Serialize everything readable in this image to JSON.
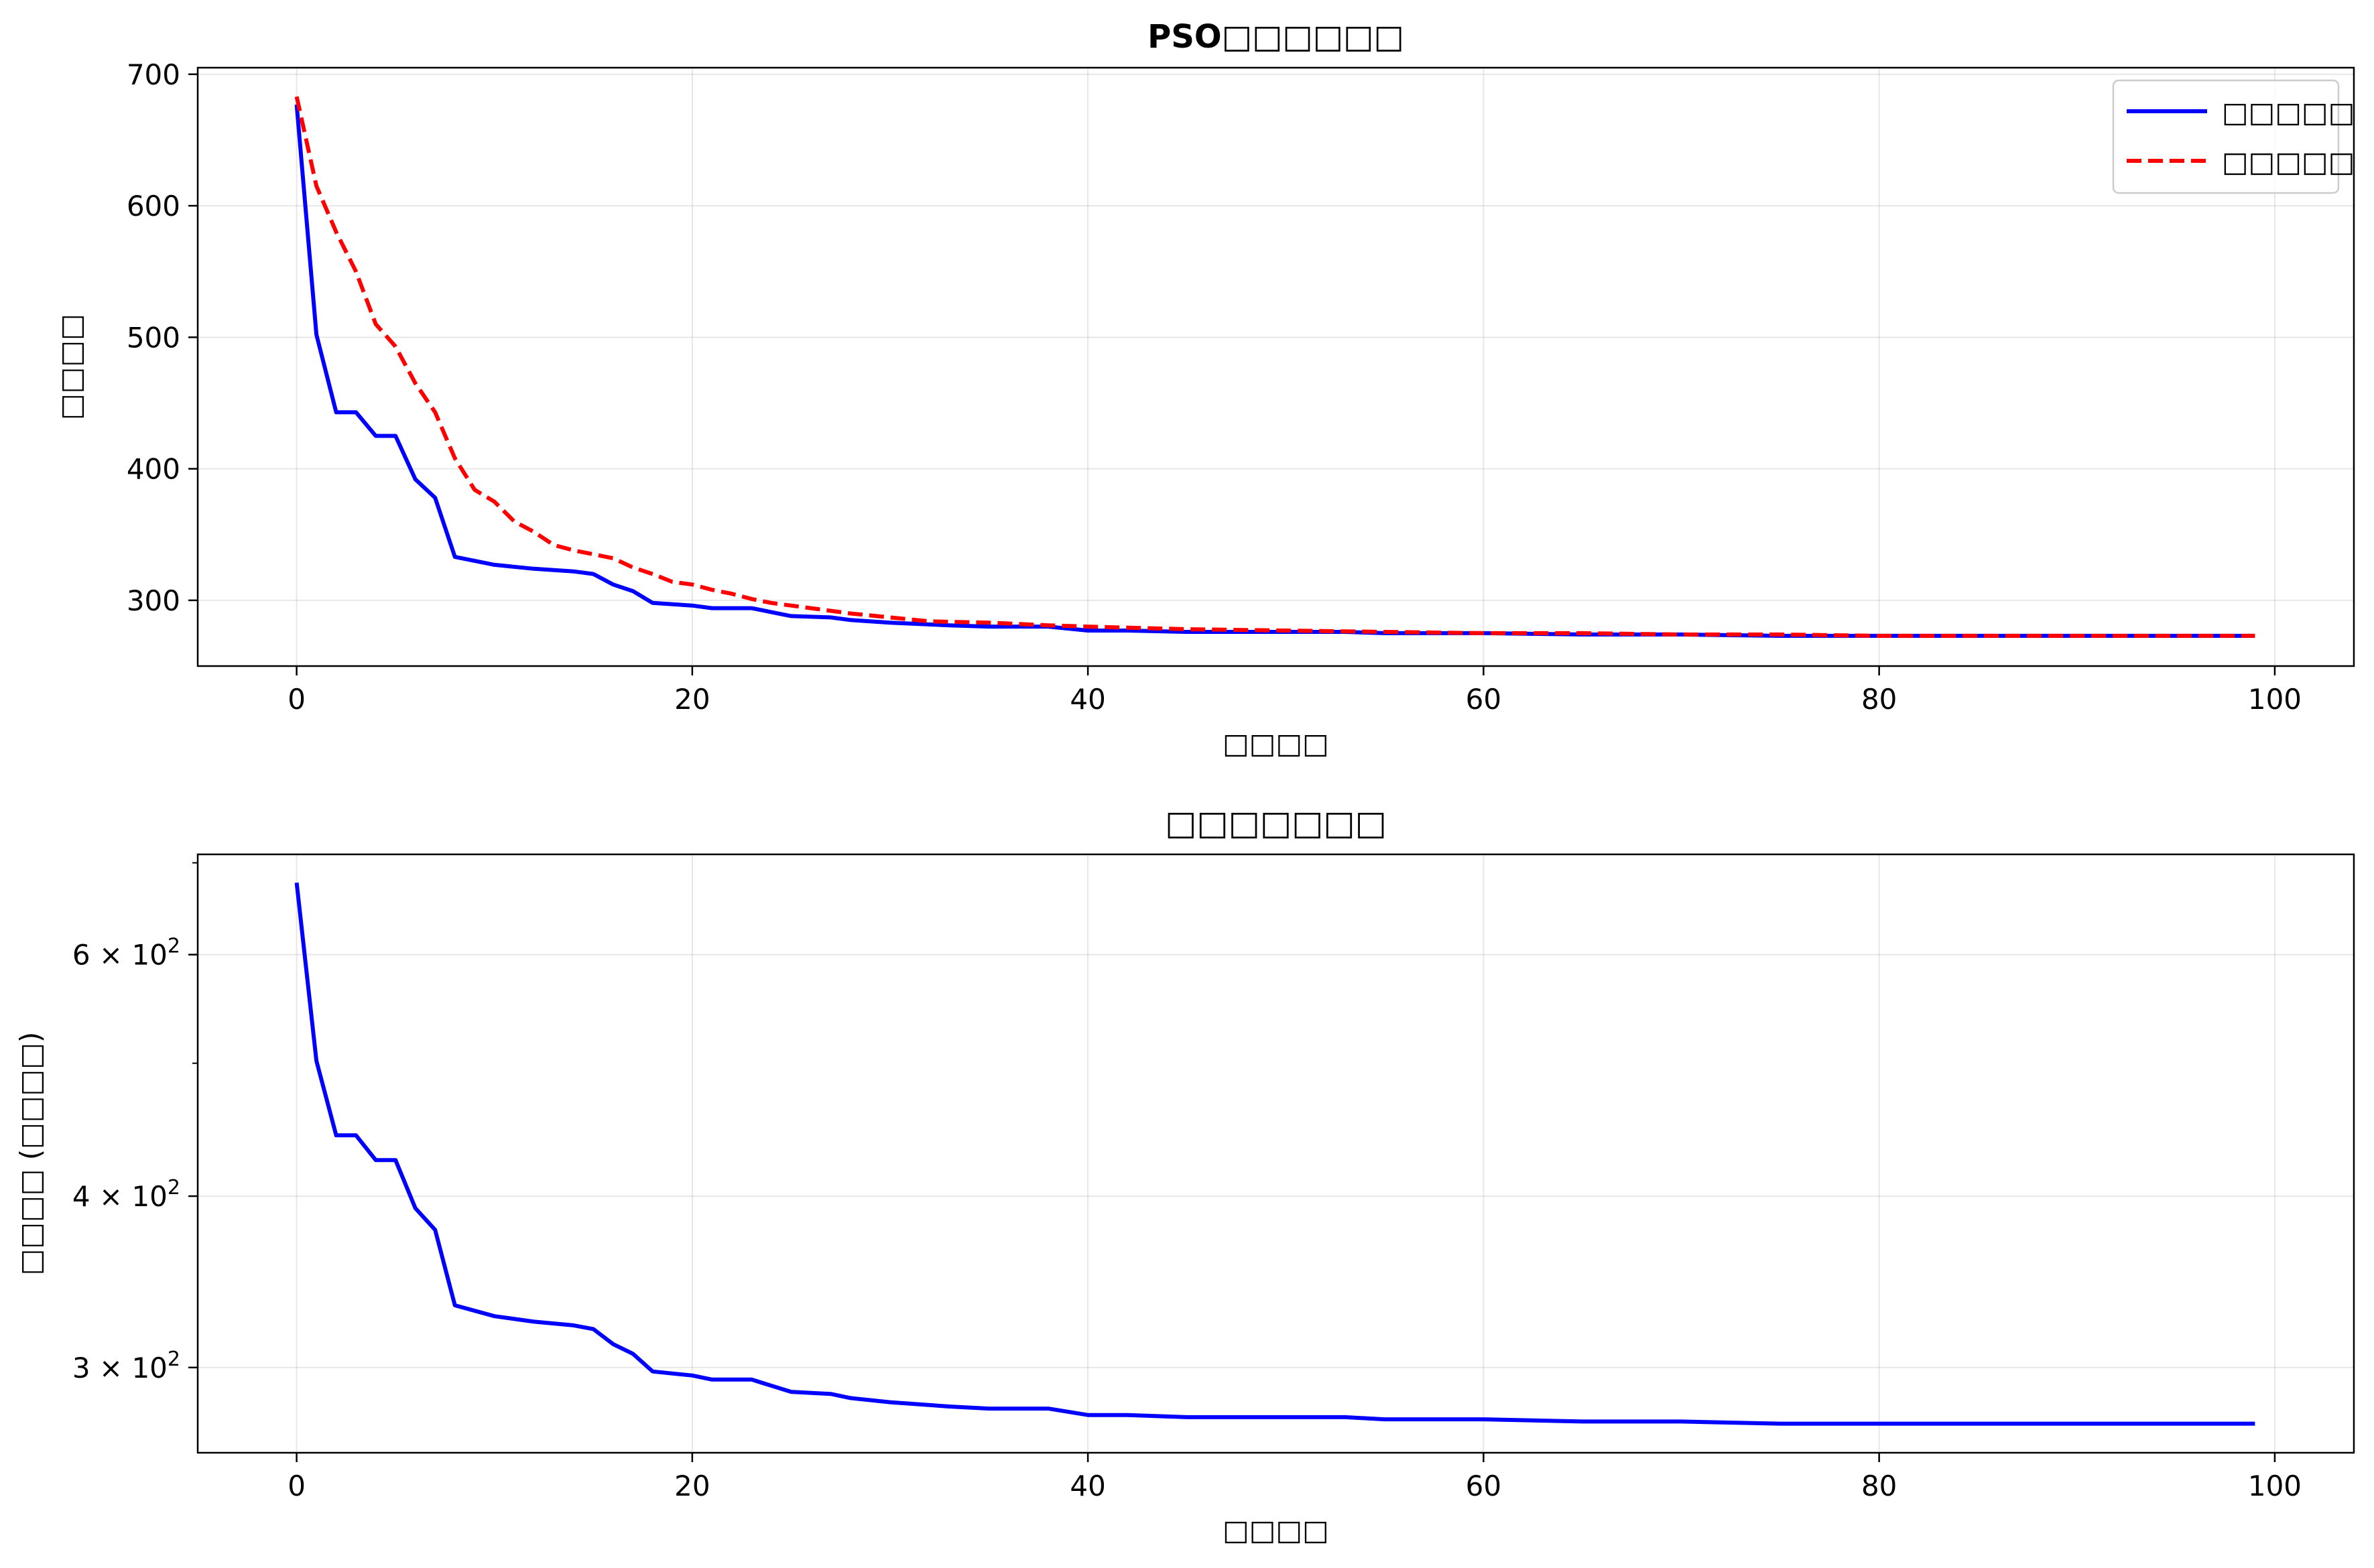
{
  "chart_data": [
    {
      "type": "line",
      "title": "PSO□□□□□□",
      "xlabel": "□□□□",
      "ylabel": "□□□□",
      "xlim": [
        -5,
        104
      ],
      "ylim": [
        250,
        705
      ],
      "xticks": [
        0,
        20,
        40,
        60,
        80,
        100
      ],
      "yticks": [
        300,
        400,
        500,
        600,
        700
      ],
      "xtick_labels": [
        "0",
        "20",
        "40",
        "60",
        "80",
        "100"
      ],
      "ytick_labels": [
        "300",
        "400",
        "500",
        "600",
        "700"
      ],
      "grid": true,
      "legend_position": "top-right",
      "series": [
        {
          "name": "□□□□□",
          "color": "#0000ff",
          "style": "solid",
          "x": [
            0,
            1,
            2,
            3,
            4,
            5,
            6,
            7,
            8,
            10,
            12,
            14,
            15,
            16,
            17,
            18,
            20,
            21,
            23,
            25,
            27,
            28,
            30,
            33,
            35,
            38,
            40,
            42,
            45,
            50,
            53,
            55,
            60,
            65,
            68,
            70,
            75,
            80,
            85,
            90,
            95,
            99
          ],
          "y": [
            677,
            502,
            443,
            443,
            425,
            425,
            392,
            378,
            333,
            327,
            324,
            322,
            320,
            312,
            307,
            298,
            296,
            294,
            294,
            288,
            287,
            285,
            283,
            281,
            280,
            280,
            277,
            277,
            276,
            276,
            276,
            275,
            275,
            274,
            274,
            274,
            273,
            273,
            273,
            273,
            273,
            273
          ]
        },
        {
          "name": "□□□□□",
          "color": "#ff0000",
          "style": "dashed",
          "x": [
            0,
            1,
            2,
            3,
            4,
            5,
            6,
            7,
            8,
            9,
            10,
            11,
            12,
            13,
            14,
            15,
            16,
            17,
            18,
            19,
            20,
            21,
            22,
            23,
            24,
            25,
            26,
            28,
            30,
            32,
            35,
            38,
            40,
            45,
            50,
            55,
            60,
            65,
            70,
            75,
            80,
            90,
            99
          ],
          "y": [
            683,
            615,
            580,
            550,
            510,
            493,
            465,
            443,
            408,
            384,
            375,
            360,
            352,
            342,
            338,
            335,
            332,
            325,
            320,
            314,
            312,
            308,
            305,
            301,
            298,
            296,
            294,
            290,
            287,
            284,
            283,
            281,
            280,
            278,
            277,
            276,
            275,
            275,
            274,
            274,
            273,
            273,
            273
          ]
        }
      ]
    },
    {
      "type": "line",
      "title": "□□□□□□□",
      "xlabel": "□□□□",
      "ylabel": "□□□□ (□□□□)",
      "xlim": [
        -5,
        104
      ],
      "ylim": [
        260,
        710
      ],
      "yscale": "log",
      "xticks": [
        0,
        20,
        40,
        60,
        80,
        100
      ],
      "xtick_labels": [
        "0",
        "20",
        "40",
        "60",
        "80",
        "100"
      ],
      "yticks": [
        300,
        400,
        600
      ],
      "ytick_labels": [
        {
          "base": "3 × 10",
          "exp": "2"
        },
        {
          "base": "4 × 10",
          "exp": "2"
        },
        {
          "base": "6 × 10",
          "exp": "2"
        }
      ],
      "yminorticks": [
        500,
        700
      ],
      "grid": true,
      "series": [
        {
          "color": "#0000ff",
          "style": "solid",
          "x": [
            0,
            1,
            2,
            3,
            4,
            5,
            6,
            7,
            8,
            10,
            12,
            14,
            15,
            16,
            17,
            18,
            20,
            21,
            23,
            25,
            27,
            28,
            30,
            33,
            35,
            38,
            40,
            42,
            45,
            50,
            53,
            55,
            60,
            65,
            68,
            70,
            75,
            80,
            85,
            90,
            95,
            99
          ],
          "y": [
            677,
            502,
            443,
            443,
            425,
            425,
            392,
            378,
            333,
            327,
            324,
            322,
            320,
            312,
            307,
            298,
            296,
            294,
            294,
            288,
            287,
            285,
            283,
            281,
            280,
            280,
            277,
            277,
            276,
            276,
            276,
            275,
            275,
            274,
            274,
            274,
            273,
            273,
            273,
            273,
            273,
            273
          ]
        }
      ]
    }
  ]
}
